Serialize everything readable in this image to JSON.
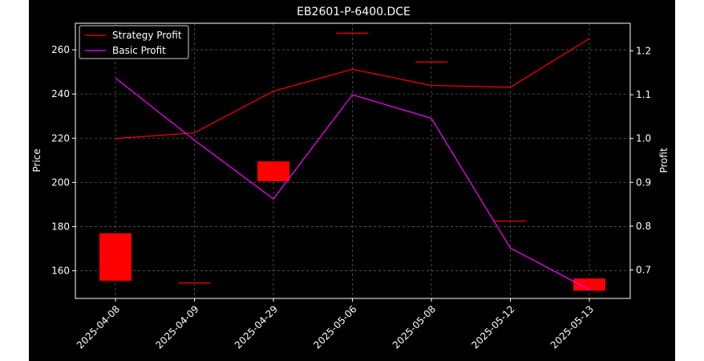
{
  "chart_data": {
    "type": "candlestick+line",
    "title": "EB2601-P-6400.DCE",
    "xlabel": "",
    "ylabel_left": "Price",
    "ylabel_right": "Profit",
    "categories": [
      "2025-04-08",
      "2025-04-09",
      "2025-04-29",
      "2025-05-06",
      "2025-05-08",
      "2025-05-12",
      "2025-05-13"
    ],
    "ylim_left": [
      147.5,
      272
    ],
    "ylim_right": [
      0.635,
      1.263
    ],
    "yticks_left": [
      160,
      180,
      200,
      220,
      240,
      260
    ],
    "yticks_right": [
      0.7,
      0.8,
      0.9,
      1.0,
      1.1,
      1.2
    ],
    "candles": [
      {
        "date": "2025-04-08",
        "open": 155.5,
        "close": 177.0
      },
      {
        "date": "2025-04-09",
        "open": 154.5,
        "close": 154.5
      },
      {
        "date": "2025-04-29",
        "open": 200.5,
        "close": 209.5
      },
      {
        "date": "2025-05-06",
        "open": 267.5,
        "close": 267.5
      },
      {
        "date": "2025-05-08",
        "open": 254.5,
        "close": 254.5
      },
      {
        "date": "2025-05-12",
        "open": 182.5,
        "close": 182.5
      },
      {
        "date": "2025-05-13",
        "open": 151.0,
        "close": 156.5
      }
    ],
    "series": [
      {
        "name": "Strategy Profit",
        "color": "#ff0000",
        "axis": "right",
        "values": [
          1.0,
          1.013,
          1.108,
          1.158,
          1.121,
          1.117,
          1.228
        ]
      },
      {
        "name": "Basic Profit",
        "color": "#ff00ff",
        "axis": "right",
        "values": [
          1.138,
          0.996,
          0.862,
          1.1,
          1.046,
          0.75,
          0.655
        ]
      }
    ],
    "candle_color": "#ff0000",
    "grid": true,
    "legend_position": "top-left",
    "background": "#000000",
    "foreground": "#ffffff"
  }
}
